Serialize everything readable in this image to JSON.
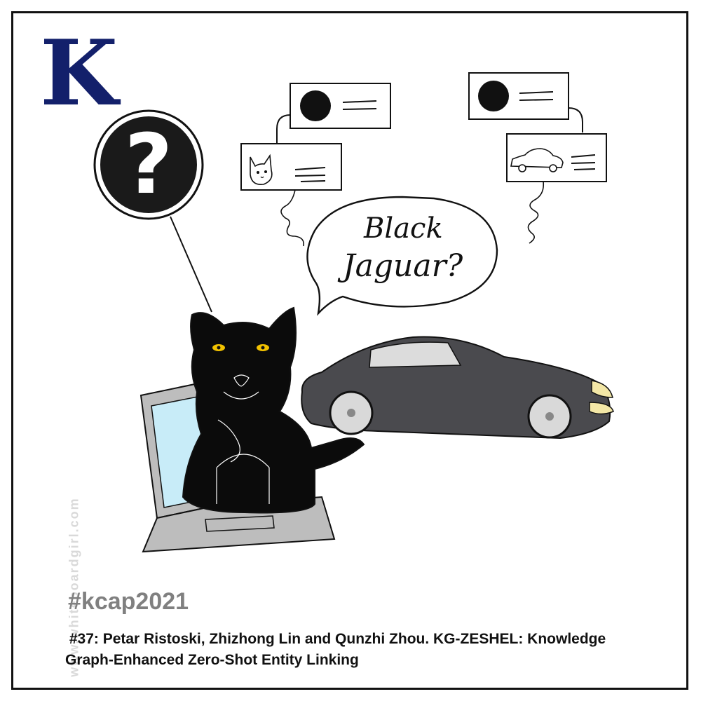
{
  "header": {
    "letter": "K"
  },
  "speech_bubble": {
    "line1": "Black",
    "line2": "Jaguar?"
  },
  "question_bubble": {
    "symbol": "?"
  },
  "footer": {
    "hashtag": "#kcap2021",
    "caption_line1": " #37: Petar Ristoski, Zhizhong Lin and Qunzhi Zhou. KG-ZESHEL: Knowledge",
    "caption_line2": "Graph-Enhanced Zero-Shot Entity Linking"
  },
  "watermark": "www.whiteboardgirl.com",
  "colors": {
    "letter": "#13206b",
    "hashtag": "#808080",
    "laptop": "#bdbdbd",
    "screen": "#c8ecf8",
    "car": "#4a4a4e",
    "panther": "#0b0b0b",
    "eyes": "#f2c200"
  }
}
